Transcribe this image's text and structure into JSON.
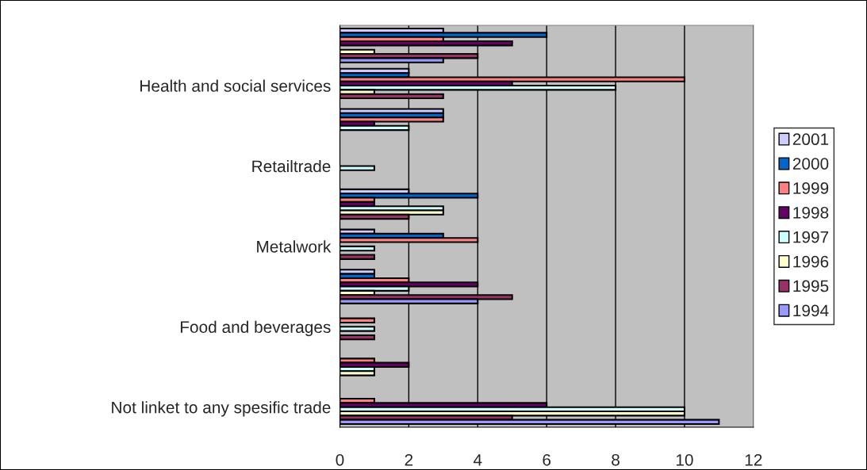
{
  "chart_data": {
    "type": "bar",
    "orientation": "horizontal",
    "categories": [
      null,
      "Health and social services",
      null,
      "Retailtrade",
      null,
      "Metalwork",
      null,
      "Food and beverages",
      null,
      "Not linket to any spesific trade"
    ],
    "series": [
      {
        "name": "2001",
        "color": "#ccccff",
        "values": [
          3,
          2,
          3,
          null,
          2,
          1,
          1,
          null,
          null,
          null
        ]
      },
      {
        "name": "2000",
        "color": "#0066cc",
        "values": [
          6,
          2,
          3,
          null,
          4,
          3,
          1,
          null,
          null,
          null
        ]
      },
      {
        "name": "1999",
        "color": "#ff8080",
        "values": [
          3,
          10,
          3,
          null,
          1,
          4,
          2,
          1,
          1,
          1
        ]
      },
      {
        "name": "1998",
        "color": "#660066",
        "values": [
          5,
          5,
          1,
          null,
          1,
          null,
          4,
          null,
          2,
          6
        ]
      },
      {
        "name": "1997",
        "color": "#ccffff",
        "values": [
          null,
          8,
          2,
          1,
          3,
          1,
          2,
          1,
          1,
          10
        ]
      },
      {
        "name": "1996",
        "color": "#ffffcc",
        "values": [
          1,
          1,
          null,
          null,
          3,
          null,
          1,
          null,
          1,
          10
        ]
      },
      {
        "name": "1995",
        "color": "#993366",
        "values": [
          4,
          3,
          null,
          null,
          2,
          1,
          5,
          1,
          null,
          5
        ]
      },
      {
        "name": "1994",
        "color": "#9999ff",
        "values": [
          3,
          null,
          null,
          null,
          null,
          null,
          4,
          null,
          null,
          11
        ]
      }
    ],
    "xlim": [
      0,
      12
    ],
    "xticks": [
      0,
      2,
      4,
      6,
      8,
      10,
      12
    ],
    "grid": "x",
    "legend": "right"
  }
}
